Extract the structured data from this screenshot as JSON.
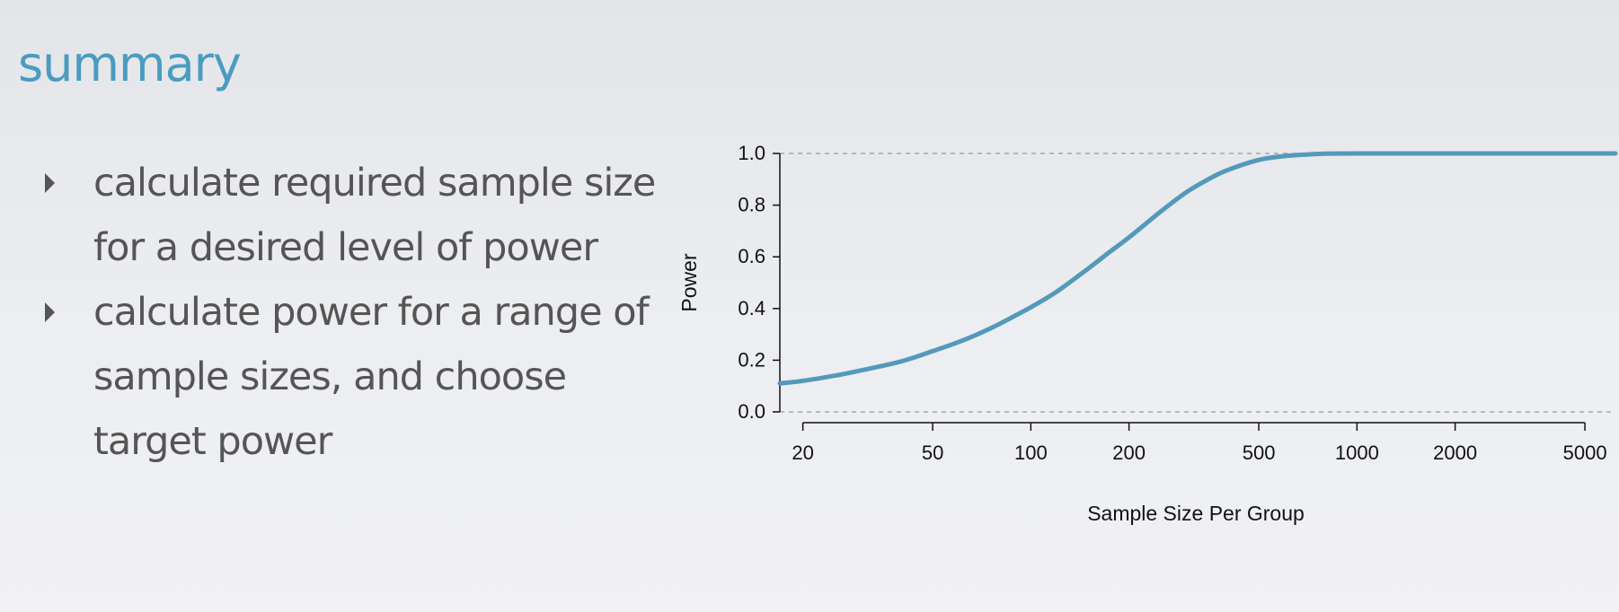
{
  "title": "summary",
  "bullets": [
    "calculate required sample size for a desired level of power",
    "calculate power for a range of sample sizes, and choose target power"
  ],
  "colors": {
    "title": "#4a9cc0",
    "text": "#555555",
    "curve": "#5499bb",
    "reference_line": "#999999",
    "axis": "#111111"
  },
  "chart_data": {
    "type": "line",
    "title": "",
    "xlabel": "Sample Size Per Group",
    "ylabel": "Power",
    "x_scale": "log",
    "xlim": [
      17,
      6200
    ],
    "ylim": [
      0,
      1
    ],
    "x_ticks": [
      20,
      50,
      100,
      200,
      500,
      1000,
      2000,
      5000
    ],
    "x_tick_labels": [
      "20",
      "50",
      "100",
      "200",
      "500",
      "1000",
      "2000",
      "5000"
    ],
    "y_ticks": [
      0,
      0.2,
      0.4,
      0.6,
      0.8,
      1
    ],
    "y_tick_labels": [
      "0.0",
      "0.2",
      "0.4",
      "0.6",
      "0.8",
      "1.0"
    ],
    "reference_lines": [
      0,
      1
    ],
    "grid": false,
    "legend": "none",
    "series": [
      {
        "x": [
          17,
          20,
          25,
          30,
          40,
          50,
          60,
          70,
          80,
          100,
          120,
          150,
          175,
          200,
          250,
          300,
          350,
          400,
          500,
          600,
          700,
          800,
          1000,
          1500,
          2000,
          3000,
          5000,
          6200
        ],
        "y": [
          0.11,
          0.12,
          0.14,
          0.16,
          0.195,
          0.235,
          0.27,
          0.305,
          0.34,
          0.405,
          0.465,
          0.555,
          0.62,
          0.675,
          0.775,
          0.85,
          0.9,
          0.935,
          0.975,
          0.99,
          0.996,
          0.999,
          1.0,
          1.0,
          1.0,
          1.0,
          1.0,
          1.0
        ]
      }
    ]
  }
}
